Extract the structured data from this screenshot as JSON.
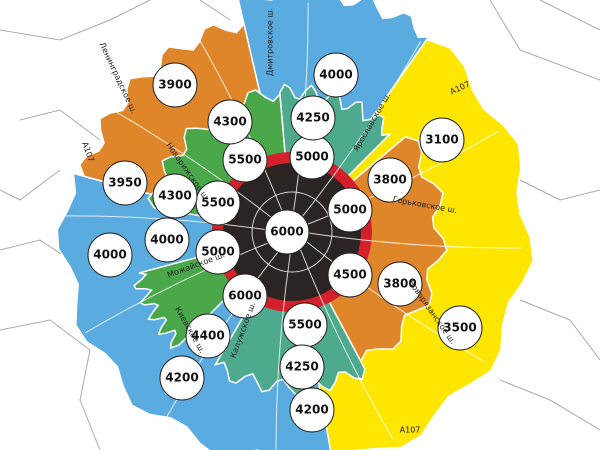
{
  "zone_labels": [
    6000,
    5500,
    5000,
    5500,
    5000,
    5000,
    4500,
    6000,
    5500,
    3900,
    4300,
    4250,
    4000,
    3950,
    4300,
    4000,
    4000,
    3800,
    3100,
    3800,
    3500,
    4400,
    4200,
    4250,
    4200
  ],
  "road_labels": [
    "Ленинградское ш.",
    "Дмитровское ш.",
    "А107",
    "Ярославское ш.",
    "А107",
    "Новорижское ш.",
    "Горьковское ш.",
    "Можайское ш.",
    "Киевское ш.",
    "Калужское ш.",
    "Новорязанское ш.",
    "А107"
  ]
}
